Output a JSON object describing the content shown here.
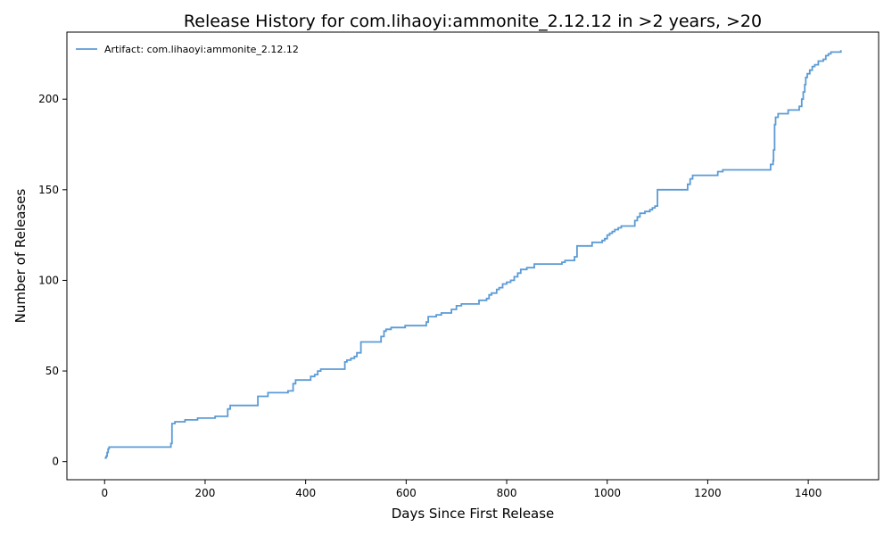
{
  "chart_data": {
    "type": "line",
    "title": "Release History for com.lihaoyi:ammonite_2.12.12 in >2 years, >20",
    "xlabel": "Days Since First Release",
    "ylabel": "Number of Releases",
    "xlim": [
      -75,
      1540
    ],
    "ylim": [
      -10,
      237
    ],
    "xticks": [
      0,
      200,
      400,
      600,
      800,
      1000,
      1200,
      1400
    ],
    "yticks": [
      0,
      50,
      100,
      150,
      200
    ],
    "grid": false,
    "legend_position": "top-left",
    "series": [
      {
        "name": "Artifact: com.lihaoyi:ammonite_2.12.12",
        "color": "#5b9bd5",
        "step": true,
        "x": [
          0,
          3,
          5,
          7,
          9,
          12,
          132,
          134,
          135,
          140,
          160,
          185,
          220,
          245,
          250,
          305,
          325,
          365,
          375,
          380,
          410,
          418,
          424,
          430,
          478,
          482,
          490,
          497,
          502,
          510,
          550,
          556,
          560,
          570,
          598,
          640,
          644,
          660,
          670,
          690,
          700,
          710,
          745,
          760,
          765,
          770,
          780,
          785,
          792,
          800,
          808,
          815,
          822,
          828,
          840,
          855,
          910,
          916,
          935,
          940,
          970,
          990,
          995,
          1000,
          1005,
          1010,
          1015,
          1022,
          1028,
          1038,
          1055,
          1060,
          1065,
          1075,
          1085,
          1090,
          1095,
          1100,
          1160,
          1165,
          1170,
          1220,
          1230,
          1315,
          1325,
          1330,
          1331,
          1333,
          1335,
          1340,
          1360,
          1380,
          1382,
          1387,
          1390,
          1393,
          1395,
          1398,
          1403,
          1408,
          1413,
          1420,
          1430,
          1435,
          1440,
          1445,
          1465
        ],
        "y": [
          2,
          3,
          5,
          7,
          8,
          8,
          10,
          21,
          21,
          22,
          23,
          24,
          25,
          29,
          31,
          36,
          38,
          39,
          43,
          45,
          47,
          48,
          50,
          51,
          55,
          56,
          57,
          58,
          60,
          66,
          69,
          72,
          73,
          74,
          75,
          77,
          80,
          81,
          82,
          84,
          86,
          87,
          89,
          90,
          92,
          93,
          95,
          96,
          98,
          99,
          100,
          102,
          104,
          106,
          107,
          109,
          110,
          111,
          113,
          119,
          121,
          122,
          123,
          125,
          126,
          127,
          128,
          129,
          130,
          130,
          133,
          135,
          137,
          138,
          139,
          140,
          141,
          150,
          153,
          156,
          158,
          160,
          161,
          161,
          164,
          166,
          172,
          186,
          190,
          192,
          194,
          194,
          196,
          200,
          204,
          208,
          212,
          214,
          216,
          218,
          219,
          221,
          222,
          224,
          225,
          226,
          227
        ]
      }
    ]
  }
}
